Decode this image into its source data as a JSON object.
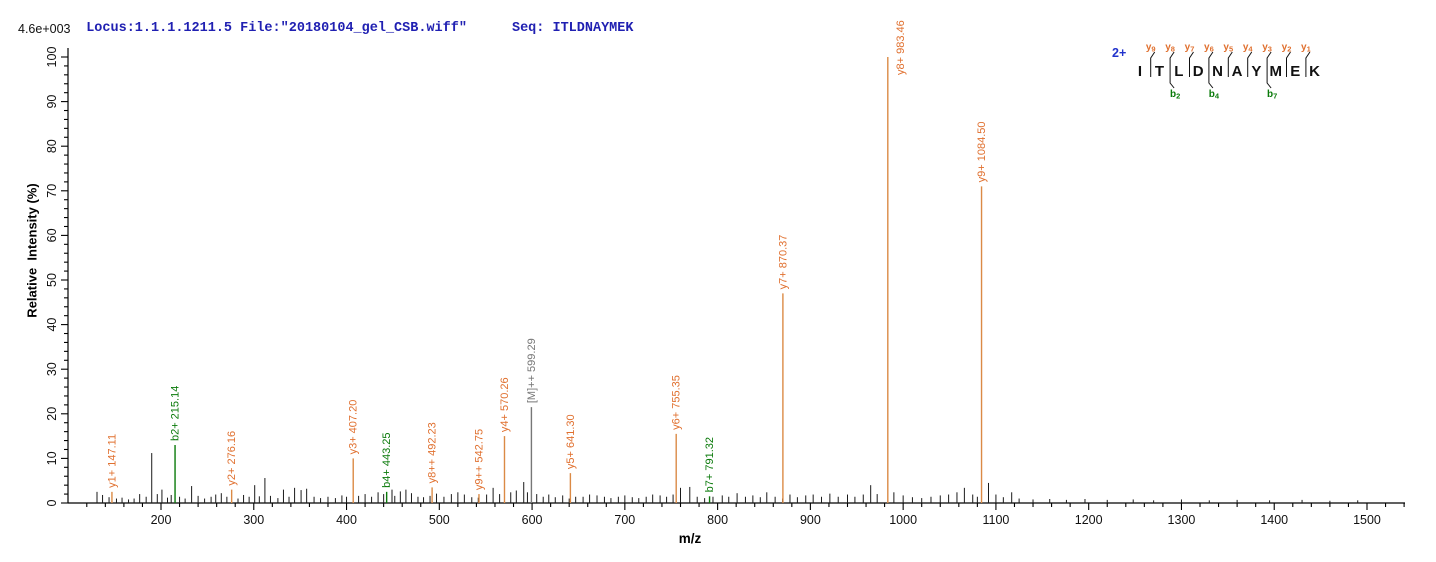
{
  "header": {
    "locus_text": "Locus:1.1.1.1211.5 File:\"20180104_gel_CSB.wiff\"",
    "seq_text": "Seq: ITLDNAYMEK"
  },
  "colors": {
    "y_ion": "#E0702F",
    "y_ion_line": "#DB8A45",
    "b_ion": "#0A7A0A",
    "precursor": "#777777",
    "noise_peak": "#1A1A1A",
    "header_text": "#2020B2",
    "charge_text": "#2233CC",
    "axis": "#000000",
    "background": "#FFFFFF"
  },
  "peptide_annotation": {
    "charge_label": "2+",
    "residues": [
      "I",
      "T",
      "L",
      "D",
      "N",
      "A",
      "Y",
      "M",
      "E",
      "K"
    ],
    "y_ion_labels": [
      "y9",
      "y8",
      "y7",
      "y6",
      "y5",
      "y4",
      "y3",
      "y2",
      "y1"
    ],
    "b_ion_labels": [
      {
        "label": "b2",
        "boundary": 2
      },
      {
        "label": "b4",
        "boundary": 4
      },
      {
        "label": "b7",
        "boundary": 7
      }
    ]
  },
  "chart_data": {
    "type": "bar",
    "subtype": "ms2-fragment-centroid-spectrum",
    "title": "",
    "xlabel": "m/z",
    "ylabel": "Relative  Intensity (%)",
    "y_scale_note": "4.6e+003",
    "xlim": [
      100,
      1541
    ],
    "ylim": [
      0,
      100
    ],
    "grid": false,
    "x_ticks": [
      200,
      300,
      400,
      500,
      600,
      700,
      800,
      900,
      1000,
      1100,
      1200,
      1300,
      1400,
      1500
    ],
    "x_minor_step": 20,
    "y_ticks": [
      0,
      10,
      20,
      30,
      40,
      50,
      60,
      70,
      80,
      90,
      100
    ],
    "y_minor_step": 2,
    "fragments": [
      {
        "ion": "y1+",
        "label": "y1+ 147.11",
        "mz": 147.11,
        "intensity_pct": 2.5,
        "type": "y"
      },
      {
        "ion": "b2+",
        "label": "b2+ 215.14",
        "mz": 215.14,
        "intensity_pct": 13,
        "type": "b"
      },
      {
        "ion": "y2+",
        "label": "y2+ 276.16",
        "mz": 276.16,
        "intensity_pct": 3,
        "type": "y"
      },
      {
        "ion": "y3+",
        "label": "y3+ 407.20",
        "mz": 407.2,
        "intensity_pct": 10,
        "type": "y"
      },
      {
        "ion": "b4+",
        "label": "b4+ 443.25",
        "mz": 443.25,
        "intensity_pct": 2.5,
        "type": "b"
      },
      {
        "ion": "y8++",
        "label": "y8++ 492.23",
        "mz": 492.23,
        "intensity_pct": 3.5,
        "type": "y"
      },
      {
        "ion": "y9++",
        "label": "y9++ 542.75",
        "mz": 542.75,
        "intensity_pct": 2,
        "type": "y"
      },
      {
        "ion": "y4+",
        "label": "y4+ 570.26",
        "mz": 570.26,
        "intensity_pct": 15,
        "type": "y"
      },
      {
        "ion": "[M]++",
        "label": "[M]++ 599.29",
        "mz": 599.29,
        "intensity_pct": 21.5,
        "type": "M"
      },
      {
        "ion": "y5+",
        "label": "y5+ 641.30",
        "mz": 641.3,
        "intensity_pct": 6.7,
        "type": "y"
      },
      {
        "ion": "y6+",
        "label": "y6+ 755.35",
        "mz": 755.35,
        "intensity_pct": 15.5,
        "type": "y"
      },
      {
        "ion": "b7+",
        "label": "b7+ 791.32",
        "mz": 791.32,
        "intensity_pct": 1.5,
        "type": "b"
      },
      {
        "ion": "y7+",
        "label": "y7+ 870.37",
        "mz": 870.37,
        "intensity_pct": 47,
        "type": "y"
      },
      {
        "ion": "y8+",
        "label": "y8+ 983.46",
        "mz": 983.46,
        "intensity_pct": 100,
        "type": "y"
      },
      {
        "ion": "y9+",
        "label": "y9+ 1084.50",
        "mz": 1084.5,
        "intensity_pct": 71,
        "type": "y"
      }
    ],
    "noise_peaks": [
      [
        131,
        2.5
      ],
      [
        137,
        1.8
      ],
      [
        144,
        1.3
      ],
      [
        152,
        1.0
      ],
      [
        158,
        1.2
      ],
      [
        165,
        0.8
      ],
      [
        171,
        1.0
      ],
      [
        177,
        2.0
      ],
      [
        184,
        1.4
      ],
      [
        190,
        11.2
      ],
      [
        196,
        2.0
      ],
      [
        201,
        3.0
      ],
      [
        207,
        1.2
      ],
      [
        211,
        1.8
      ],
      [
        220,
        1.4
      ],
      [
        226,
        1.0
      ],
      [
        233,
        3.8
      ],
      [
        240,
        1.6
      ],
      [
        247,
        1.0
      ],
      [
        254,
        1.4
      ],
      [
        259,
        1.9
      ],
      [
        265,
        2.2
      ],
      [
        271,
        1.4
      ],
      [
        283,
        1.0
      ],
      [
        289,
        1.8
      ],
      [
        295,
        1.4
      ],
      [
        301,
        4.0
      ],
      [
        306,
        1.5
      ],
      [
        312,
        5.6
      ],
      [
        318,
        1.6
      ],
      [
        326,
        1.1
      ],
      [
        332,
        3.0
      ],
      [
        338,
        1.4
      ],
      [
        344,
        3.4
      ],
      [
        351,
        2.9
      ],
      [
        357,
        3.2
      ],
      [
        365,
        1.4
      ],
      [
        372,
        1.1
      ],
      [
        380,
        1.4
      ],
      [
        388,
        1.1
      ],
      [
        395,
        1.7
      ],
      [
        400,
        1.4
      ],
      [
        413,
        1.6
      ],
      [
        420,
        2.0
      ],
      [
        427,
        1.4
      ],
      [
        434,
        2.4
      ],
      [
        440,
        2.0
      ],
      [
        449,
        3.0
      ],
      [
        452,
        1.6
      ],
      [
        458,
        2.6
      ],
      [
        464,
        3.0
      ],
      [
        470,
        2.2
      ],
      [
        477,
        1.4
      ],
      [
        483,
        1.3
      ],
      [
        490,
        1.6
      ],
      [
        497,
        2.1
      ],
      [
        505,
        1.4
      ],
      [
        513,
        2.0
      ],
      [
        520,
        2.4
      ],
      [
        527,
        1.9
      ],
      [
        535,
        1.3
      ],
      [
        542,
        1.2
      ],
      [
        551,
        1.9
      ],
      [
        558,
        3.4
      ],
      [
        565,
        2.0
      ],
      [
        577,
        2.4
      ],
      [
        583,
        2.8
      ],
      [
        591,
        4.7
      ],
      [
        595,
        2.4
      ],
      [
        605,
        2.0
      ],
      [
        612,
        1.4
      ],
      [
        618,
        1.9
      ],
      [
        625,
        1.3
      ],
      [
        633,
        1.7
      ],
      [
        640,
        1.0
      ],
      [
        647,
        1.4
      ],
      [
        655,
        1.4
      ],
      [
        662,
        1.9
      ],
      [
        670,
        1.7
      ],
      [
        678,
        1.4
      ],
      [
        685,
        1.1
      ],
      [
        693,
        1.4
      ],
      [
        700,
        1.7
      ],
      [
        708,
        1.3
      ],
      [
        715,
        1.1
      ],
      [
        723,
        1.4
      ],
      [
        730,
        1.9
      ],
      [
        738,
        1.7
      ],
      [
        745,
        1.4
      ],
      [
        752,
        1.9
      ],
      [
        760,
        3.4
      ],
      [
        770,
        3.6
      ],
      [
        778,
        1.4
      ],
      [
        786,
        1.1
      ],
      [
        795,
        1.4
      ],
      [
        805,
        1.7
      ],
      [
        812,
        1.4
      ],
      [
        821,
        2.2
      ],
      [
        830,
        1.4
      ],
      [
        838,
        1.7
      ],
      [
        846,
        1.3
      ],
      [
        853,
        2.4
      ],
      [
        862,
        1.4
      ],
      [
        870,
        1.0
      ],
      [
        878,
        1.9
      ],
      [
        886,
        1.3
      ],
      [
        895,
        1.7
      ],
      [
        903,
        1.9
      ],
      [
        912,
        1.4
      ],
      [
        921,
        2.1
      ],
      [
        930,
        1.4
      ],
      [
        940,
        1.9
      ],
      [
        948,
        1.4
      ],
      [
        957,
        1.9
      ],
      [
        965,
        4.0
      ],
      [
        972,
        2.0
      ],
      [
        990,
        2.4
      ],
      [
        1000,
        1.7
      ],
      [
        1010,
        1.3
      ],
      [
        1020,
        1.1
      ],
      [
        1030,
        1.4
      ],
      [
        1040,
        1.7
      ],
      [
        1049,
        1.9
      ],
      [
        1058,
        2.4
      ],
      [
        1066,
        3.4
      ],
      [
        1075,
        1.9
      ],
      [
        1080,
        1.4
      ],
      [
        1092,
        4.5
      ],
      [
        1100,
        1.9
      ],
      [
        1108,
        1.3
      ],
      [
        1117,
        2.4
      ],
      [
        1125,
        1.0
      ],
      [
        1140,
        0.8
      ],
      [
        1158,
        0.9
      ],
      [
        1176,
        0.7
      ],
      [
        1196,
        0.9
      ],
      [
        1220,
        0.7
      ],
      [
        1248,
        0.8
      ],
      [
        1270,
        0.6
      ],
      [
        1300,
        0.8
      ],
      [
        1330,
        0.6
      ],
      [
        1360,
        0.7
      ],
      [
        1395,
        0.6
      ],
      [
        1430,
        0.7
      ],
      [
        1460,
        0.5
      ],
      [
        1490,
        0.6
      ]
    ]
  }
}
